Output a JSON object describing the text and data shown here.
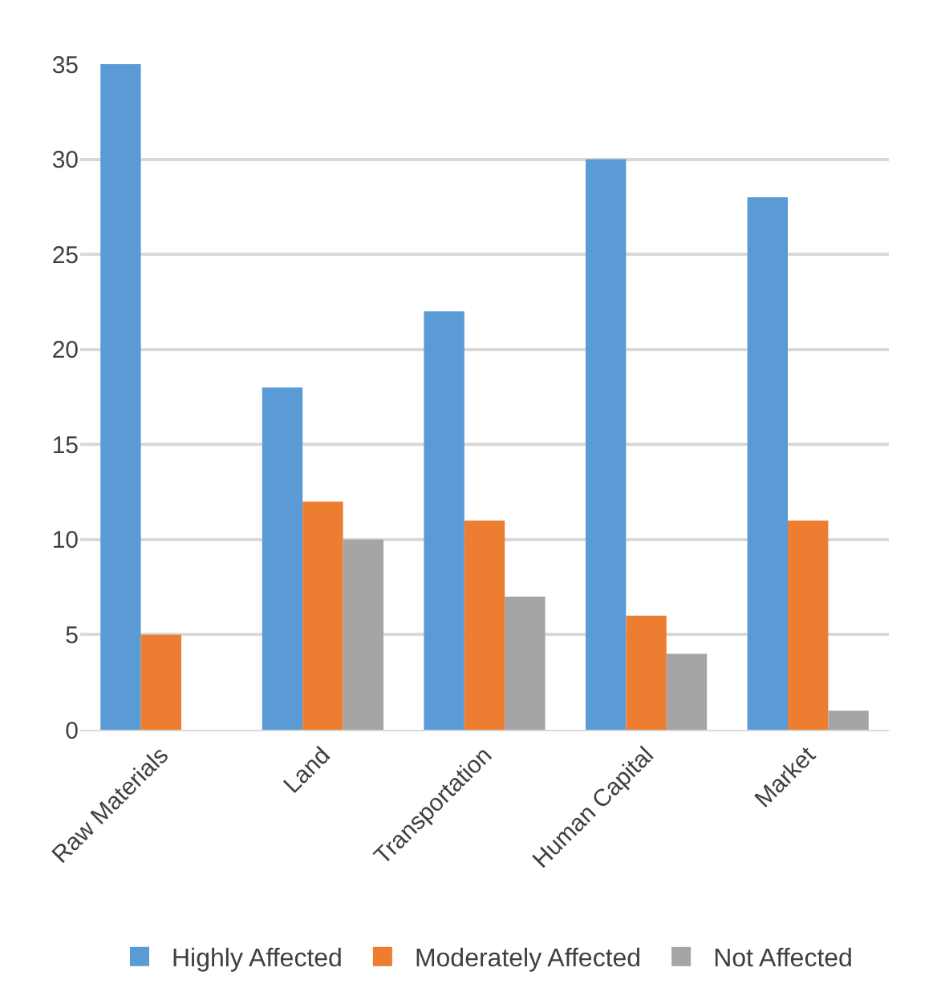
{
  "chart_data": {
    "type": "bar",
    "categories": [
      "Raw Materials",
      "Land",
      "Transportation",
      "Human Capital",
      "Market"
    ],
    "series": [
      {
        "name": "Highly Affected",
        "color": "#5b9bd5",
        "values": [
          35,
          18,
          22,
          30,
          28
        ]
      },
      {
        "name": "Moderately Affected",
        "color": "#ed7d31",
        "values": [
          5,
          12,
          11,
          6,
          11
        ]
      },
      {
        "name": "Not Affected",
        "color": "#a5a5a5",
        "values": [
          0,
          10,
          7,
          4,
          1
        ]
      }
    ],
    "ylim": [
      0,
      35
    ],
    "yticks": [
      0,
      5,
      10,
      15,
      20,
      25,
      30,
      35
    ],
    "grid": "y",
    "legend": "bottom"
  }
}
